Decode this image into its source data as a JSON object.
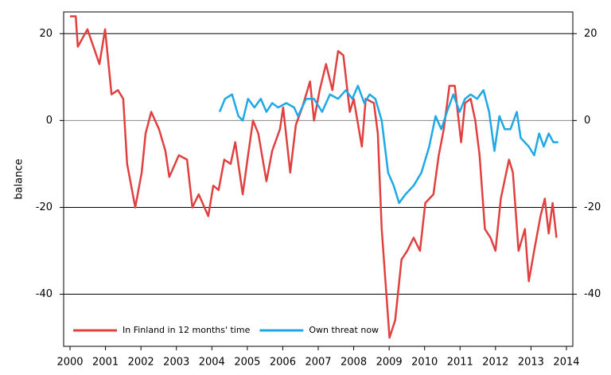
{
  "chart_data": {
    "type": "line",
    "ylabel": "balance",
    "xlim": [
      1999.82,
      2014.18
    ],
    "xticks": [
      2000,
      2001,
      2002,
      2003,
      2004,
      2005,
      2006,
      2007,
      2008,
      2009,
      2010,
      2011,
      2012,
      2013,
      2014
    ],
    "ylim": [
      -52,
      25
    ],
    "yticks": [
      -40,
      -20,
      0,
      20
    ],
    "y2lim": [
      -52,
      25
    ],
    "y2ticks": [
      -40,
      -20,
      0,
      20
    ],
    "grid": true,
    "legend": "lower left",
    "series": [
      {
        "name": "In Finland in 12 months' time",
        "color": "#e04040",
        "x": [
          2000.0,
          2000.16,
          2000.22,
          2000.49,
          2000.83,
          2000.99,
          2001.17,
          2001.35,
          2001.5,
          2001.61,
          2001.84,
          2002.02,
          2002.13,
          2002.29,
          2002.51,
          2002.69,
          2002.8,
          2003.07,
          2003.3,
          2003.45,
          2003.63,
          2003.9,
          2004.04,
          2004.19,
          2004.35,
          2004.53,
          2004.66,
          2004.87,
          2005.02,
          2005.16,
          2005.31,
          2005.54,
          2005.7,
          2005.92,
          2006.01,
          2006.21,
          2006.37,
          2006.55,
          2006.77,
          2006.88,
          2007.04,
          2007.22,
          2007.4,
          2007.56,
          2007.71,
          2007.89,
          2008.0,
          2008.23,
          2008.34,
          2008.57,
          2008.68,
          2008.79,
          2009.01,
          2009.17,
          2009.35,
          2009.51,
          2009.69,
          2009.87,
          2010.02,
          2010.25,
          2010.4,
          2010.54,
          2010.7,
          2010.85,
          2011.03,
          2011.14,
          2011.3,
          2011.43,
          2011.55,
          2011.7,
          2011.86,
          2012.0,
          2012.15,
          2012.38,
          2012.49,
          2012.65,
          2012.83,
          2012.94,
          2013.09,
          2013.27,
          2013.39,
          2013.5,
          2013.61,
          2013.72
        ],
        "values": [
          24,
          24,
          17,
          21,
          13,
          21,
          6,
          7,
          5,
          -10,
          -20,
          -12,
          -3,
          2,
          -2,
          -7,
          -13,
          -8,
          -9,
          -20,
          -17,
          -22,
          -15,
          -16,
          -9,
          -10,
          -5,
          -17,
          -8,
          0,
          -3,
          -14,
          -7,
          -2,
          3,
          -12,
          -1,
          3,
          9,
          0,
          7,
          13,
          7,
          16,
          15,
          2,
          5,
          -6,
          5,
          4,
          -3,
          -25,
          -50,
          -46,
          -32,
          -30,
          -27,
          -30,
          -19,
          -17,
          -8,
          -2,
          8,
          8,
          -5,
          4,
          5,
          0,
          -8,
          -25,
          -27,
          -30,
          -18,
          -9,
          -12,
          -30,
          -25,
          -37,
          -30,
          -22,
          -18,
          -26,
          -19,
          -27
        ]
      },
      {
        "name": "Own threat now",
        "color": "#1ea8e6",
        "x": [
          2004.22,
          2004.37,
          2004.57,
          2004.75,
          2004.87,
          2005.02,
          2005.2,
          2005.38,
          2005.54,
          2005.7,
          2005.87,
          2006.1,
          2006.32,
          2006.43,
          2006.66,
          2006.88,
          2007.11,
          2007.33,
          2007.56,
          2007.78,
          2007.96,
          2008.12,
          2008.3,
          2008.45,
          2008.61,
          2008.79,
          2008.97,
          2009.13,
          2009.28,
          2009.46,
          2009.69,
          2009.91,
          2010.13,
          2010.31,
          2010.47,
          2010.63,
          2010.81,
          2010.99,
          2011.14,
          2011.3,
          2011.48,
          2011.66,
          2011.82,
          2011.97,
          2012.11,
          2012.26,
          2012.42,
          2012.6,
          2012.71,
          2012.94,
          2013.09,
          2013.23,
          2013.36,
          2013.5,
          2013.63,
          2013.77
        ],
        "values": [
          2,
          5,
          6,
          1,
          0,
          5,
          3,
          5,
          2,
          4,
          3,
          4,
          3,
          1,
          5,
          5,
          2,
          6,
          5,
          7,
          5,
          8,
          4,
          6,
          5,
          0,
          -12,
          -15,
          -19,
          -17,
          -15,
          -12,
          -6,
          1,
          -2,
          2,
          6,
          2,
          5,
          6,
          5,
          7,
          2,
          -7,
          1,
          -2,
          -2,
          2,
          -4,
          -6,
          -8,
          -3,
          -6,
          -3,
          -5,
          -5
        ]
      }
    ]
  }
}
